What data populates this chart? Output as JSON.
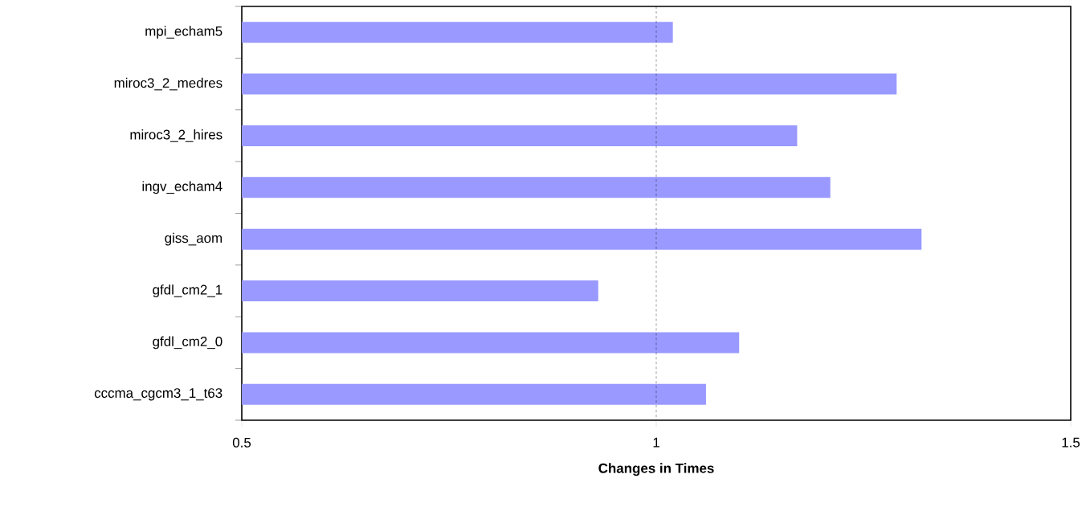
{
  "chart_data": {
    "type": "bar",
    "orientation": "horizontal",
    "xlabel": "Changes in Times",
    "categories": [
      "mpi_echam5",
      "miroc3_2_medres",
      "miroc3_2_hires",
      "ingv_echam4",
      "giss_aom",
      "gfdl_cm2_1",
      "gfdl_cm2_0",
      "cccma_cgcm3_1_t63"
    ],
    "values": [
      1.02,
      1.29,
      1.17,
      1.21,
      1.32,
      0.93,
      1.1,
      1.06
    ],
    "color": "#9999ff",
    "xlim": [
      0.5,
      1.5
    ],
    "xticks": [
      0.5,
      1,
      1.5
    ],
    "ref_lines": [
      {
        "axis": "x",
        "value": 1,
        "line_style": "dashed"
      }
    ]
  }
}
